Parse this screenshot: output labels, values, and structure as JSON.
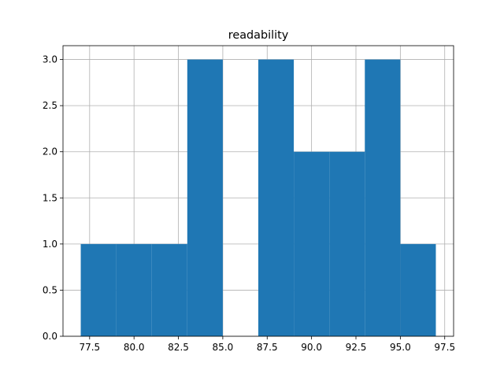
{
  "chart_data": {
    "type": "bar",
    "title": "readability",
    "xlabel": "",
    "ylabel": "",
    "grid": true,
    "bar_color": "#1f77b4",
    "grid_color": "#b0b0b0",
    "bins": [
      {
        "x0": 77.0,
        "x1": 79.0,
        "value": 1
      },
      {
        "x0": 79.0,
        "x1": 81.0,
        "value": 1
      },
      {
        "x0": 81.0,
        "x1": 83.0,
        "value": 1
      },
      {
        "x0": 83.0,
        "x1": 85.0,
        "value": 3
      },
      {
        "x0": 85.0,
        "x1": 87.0,
        "value": 0
      },
      {
        "x0": 87.0,
        "x1": 89.0,
        "value": 3
      },
      {
        "x0": 89.0,
        "x1": 91.0,
        "value": 2
      },
      {
        "x0": 91.0,
        "x1": 93.0,
        "value": 2
      },
      {
        "x0": 93.0,
        "x1": 95.0,
        "value": 3
      },
      {
        "x0": 95.0,
        "x1": 97.0,
        "value": 1
      }
    ],
    "xlim": [
      76.0,
      98.0
    ],
    "ylim": [
      0,
      3.15
    ],
    "xticks": [
      {
        "value": 77.5,
        "label": "77.5"
      },
      {
        "value": 80.0,
        "label": "80.0"
      },
      {
        "value": 82.5,
        "label": "82.5"
      },
      {
        "value": 85.0,
        "label": "85.0"
      },
      {
        "value": 87.5,
        "label": "87.5"
      },
      {
        "value": 90.0,
        "label": "90.0"
      },
      {
        "value": 92.5,
        "label": "92.5"
      },
      {
        "value": 95.0,
        "label": "95.0"
      },
      {
        "value": 97.5,
        "label": "97.5"
      }
    ],
    "yticks": [
      {
        "value": 0.0,
        "label": "0.0"
      },
      {
        "value": 0.5,
        "label": "0.5"
      },
      {
        "value": 1.0,
        "label": "1.0"
      },
      {
        "value": 1.5,
        "label": "1.5"
      },
      {
        "value": 2.0,
        "label": "2.0"
      },
      {
        "value": 2.5,
        "label": "2.5"
      },
      {
        "value": 3.0,
        "label": "3.0"
      }
    ]
  }
}
